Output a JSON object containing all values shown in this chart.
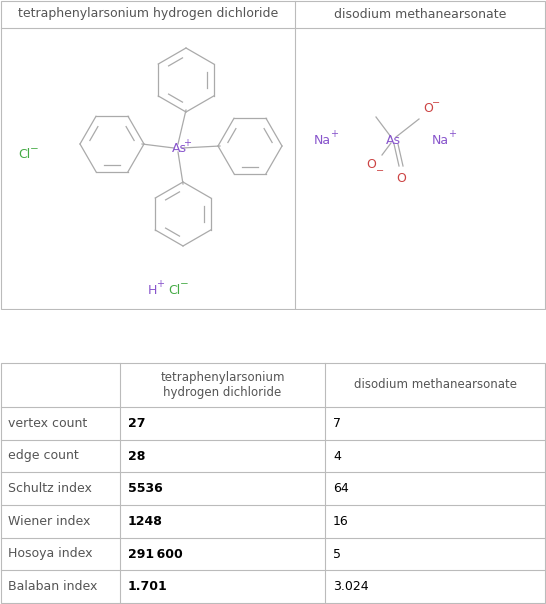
{
  "title1": "tetraphenylarsonium hydrogen dichloride",
  "title2": "disodium methanearsonate",
  "row_labels": [
    "vertex count",
    "edge count",
    "Schultz index",
    "Wiener index",
    "Hosoya index",
    "Balaban index"
  ],
  "col1_values": [
    "27",
    "28",
    "5536",
    "1248",
    "291 600",
    "1.701"
  ],
  "col2_values": [
    "7",
    "4",
    "64",
    "16",
    "5",
    "3.024"
  ],
  "col1_header": "tetraphenylarsonium\nhydrogen dichloride",
  "col2_header": "disodium methanearsonate",
  "background_color": "#ffffff",
  "border_color": "#bbbbbb",
  "header_text_color": "#555555",
  "row_label_color": "#555555",
  "value_color_bold": "#000000",
  "value_color_normal": "#000000",
  "bond_color": "#aaaaaa",
  "as_color": "#8855cc",
  "cl_color": "#44aa44",
  "na_color": "#8855cc",
  "o_color": "#cc4444",
  "h_color": "#8855cc",
  "fig_width": 5.46,
  "fig_height": 6.04,
  "dpi": 100
}
